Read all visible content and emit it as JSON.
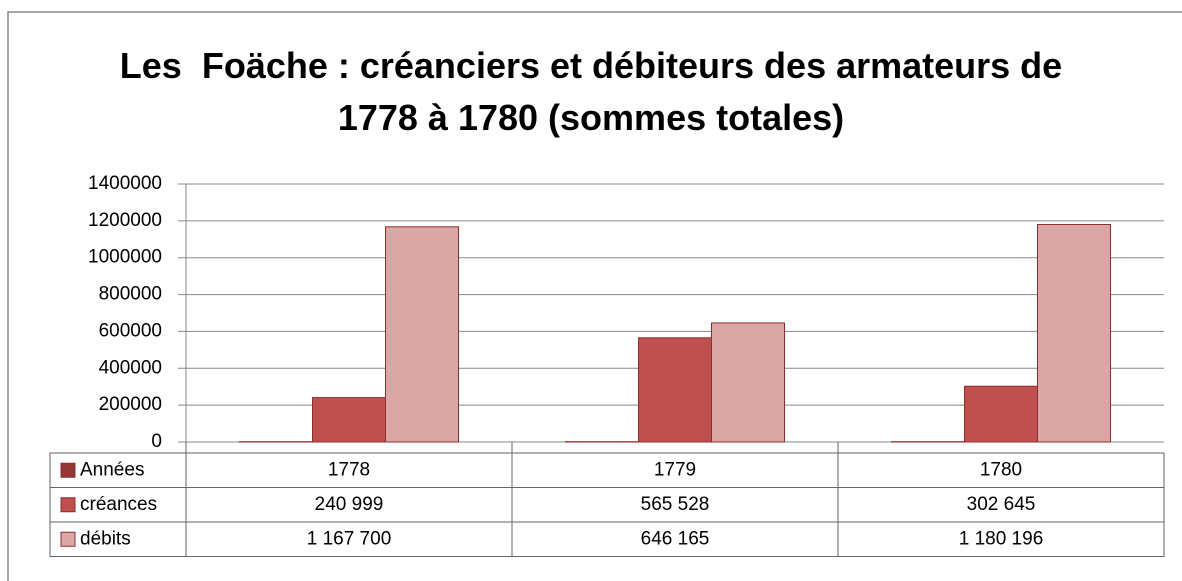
{
  "chart_data": {
    "type": "bar",
    "title": "Les  Foäche : créanciers et débiteurs des armateurs de 1778 à 1780 (sommes totales)",
    "categories": [
      null,
      null,
      null
    ],
    "series": [
      {
        "name": "Années",
        "color": "#953735",
        "values": [
          1778,
          1779,
          1780
        ]
      },
      {
        "name": "créances",
        "color": "#c0504d",
        "values": [
          240999,
          565528,
          302645
        ],
        "value_labels": [
          "240 999",
          "565 528",
          "302 645"
        ]
      },
      {
        "name": "débits",
        "color": "#d9a7a6",
        "values": [
          1167700,
          646165,
          1180196
        ],
        "value_labels": [
          "1 167 700",
          "646 165",
          "1 180 196"
        ]
      }
    ],
    "ylim": [
      0,
      1400000
    ],
    "yticks": [
      0,
      200000,
      400000,
      600000,
      800000,
      1000000,
      1200000,
      1400000
    ],
    "grid": true
  }
}
